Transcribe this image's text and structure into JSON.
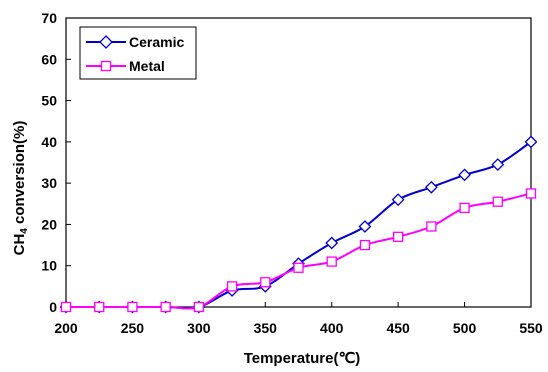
{
  "chart_data": {
    "type": "line",
    "xlabel": "Temperature(℃)",
    "ylabel_main": "CH",
    "ylabel_sub": "4",
    "ylabel_rest": " conversion(%)",
    "xlim": [
      200,
      550
    ],
    "ylim": [
      0,
      70
    ],
    "xticks": [
      200,
      250,
      300,
      350,
      400,
      450,
      500,
      550
    ],
    "yticks": [
      0,
      10,
      20,
      30,
      40,
      50,
      60,
      70
    ],
    "grid": false,
    "legend_position": "top-left",
    "series": [
      {
        "name": "Ceramic",
        "color": "#0000CC",
        "marker": "diamond",
        "x": [
          200,
          225,
          250,
          275,
          300,
          325,
          350,
          375,
          400,
          425,
          450,
          475,
          500,
          525,
          550
        ],
        "y": [
          0,
          0,
          0,
          0,
          0,
          4,
          5,
          10.5,
          15.5,
          19.5,
          26,
          29,
          32,
          34.5,
          40
        ]
      },
      {
        "name": "Metal",
        "color": "#FF00FF",
        "marker": "square",
        "x": [
          200,
          225,
          250,
          275,
          300,
          325,
          350,
          375,
          400,
          425,
          450,
          475,
          500,
          525,
          550
        ],
        "y": [
          0,
          0,
          0,
          0,
          0,
          5,
          6,
          9.5,
          11,
          15,
          17,
          19.5,
          24,
          25.5,
          27.5
        ]
      }
    ]
  }
}
